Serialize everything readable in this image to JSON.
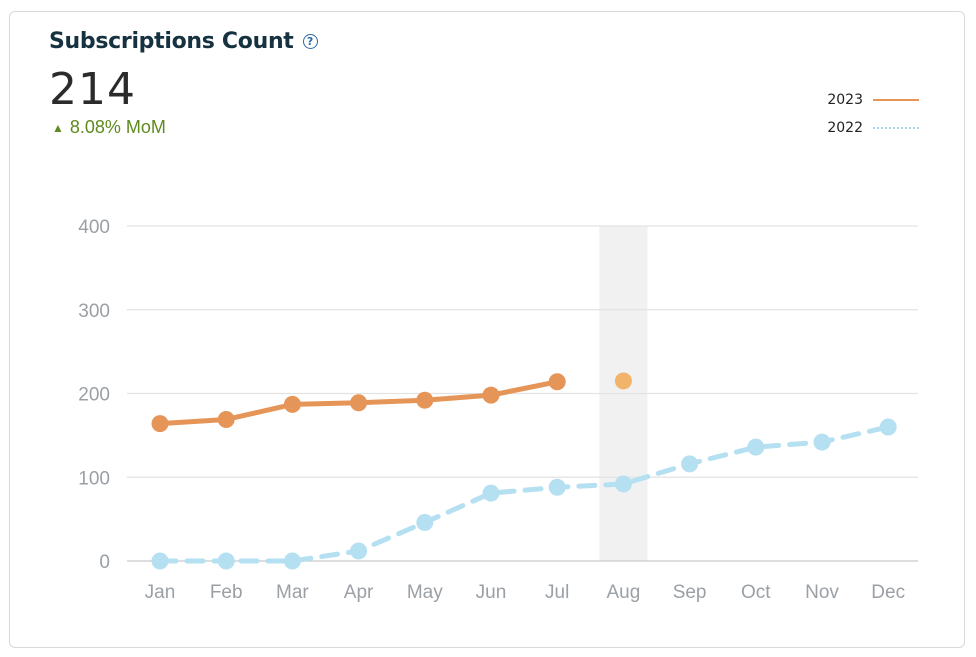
{
  "header": {
    "title": "Subscriptions Count",
    "help_icon": "question-circle-icon",
    "value": "214",
    "change_arrow": "▲",
    "change_text": "8.08% MoM"
  },
  "legend": [
    {
      "label": "2023",
      "style": "solid",
      "color": "#e69558"
    },
    {
      "label": "2022",
      "style": "dashed",
      "color": "#a9d8ee"
    }
  ],
  "chart_data": {
    "type": "line",
    "categories": [
      "Jan",
      "Feb",
      "Mar",
      "Apr",
      "May",
      "Jun",
      "Jul",
      "Aug",
      "Sep",
      "Oct",
      "Nov",
      "Dec"
    ],
    "series": [
      {
        "name": "2023",
        "color": "#e69558",
        "style": "solid",
        "values": [
          164,
          169,
          187,
          189,
          192,
          198,
          214,
          null,
          null,
          null,
          null,
          null
        ]
      },
      {
        "name": "2023 Aug",
        "color": "#f2b46a",
        "style": "point",
        "values": [
          null,
          null,
          null,
          null,
          null,
          null,
          null,
          215,
          null,
          null,
          null,
          null
        ]
      },
      {
        "name": "2022",
        "color": "#b5e0f2",
        "style": "dashed",
        "values": [
          0,
          0,
          0,
          12,
          46,
          81,
          88,
          92,
          116,
          136,
          142,
          160
        ]
      }
    ],
    "highlight_category": "Aug",
    "yticks": [
      0,
      100,
      200,
      300,
      400
    ],
    "ylim": [
      0,
      400
    ],
    "grid": true,
    "legend_position": "top-right"
  }
}
